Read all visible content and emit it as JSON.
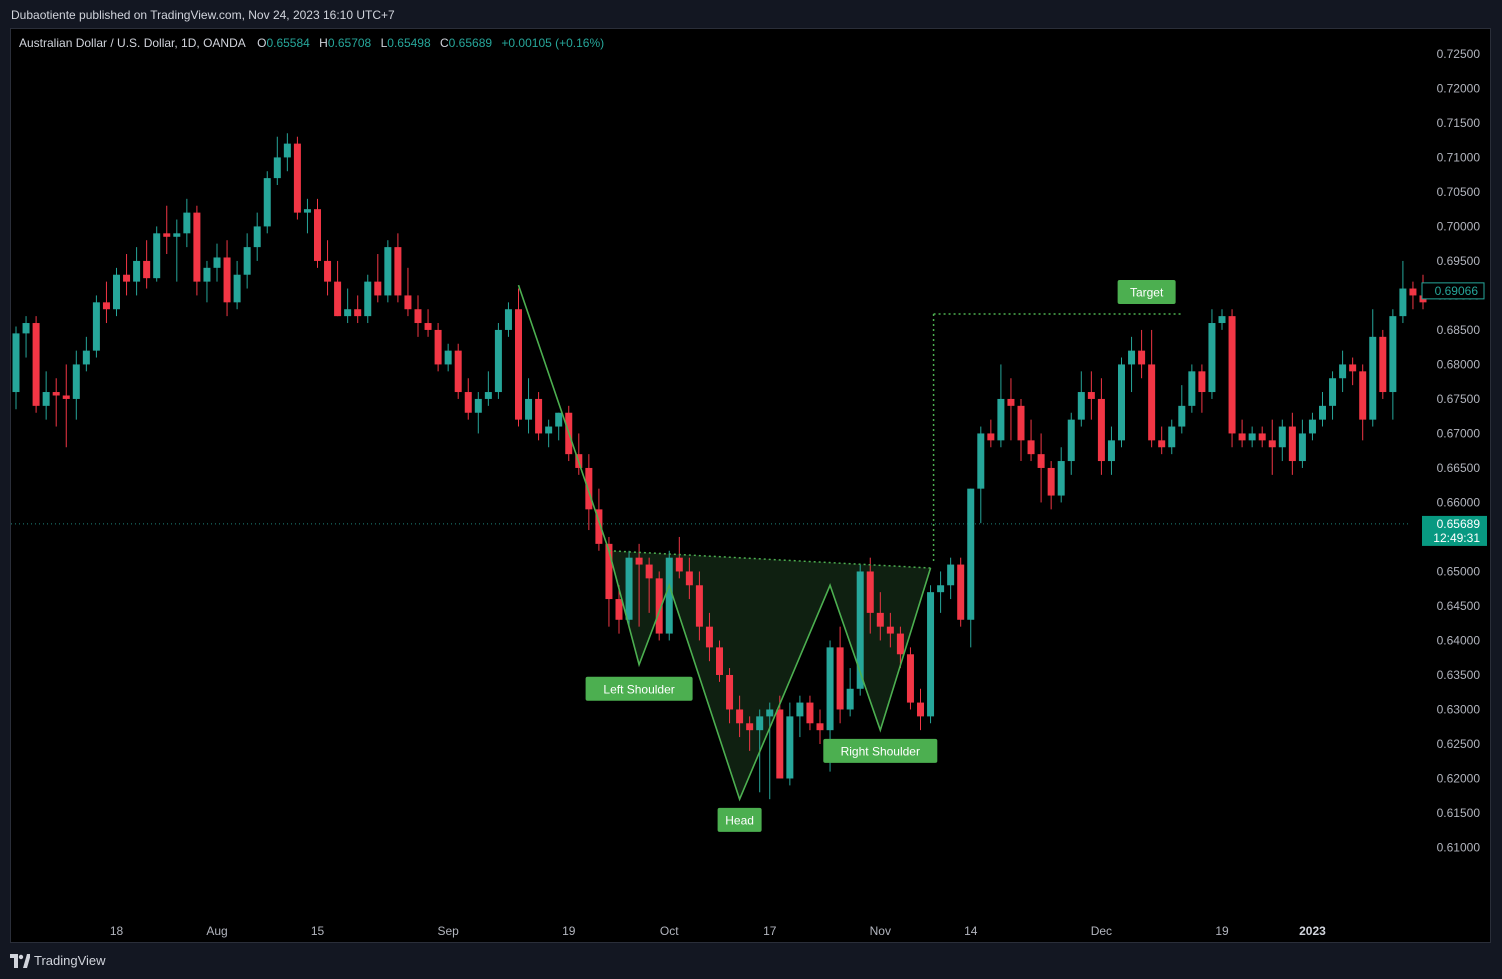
{
  "header": {
    "published": "Dubaotiente published on TradingView.com, Nov 24, 2023 16:10 UTC+7"
  },
  "legend": {
    "symbol": "Australian Dollar / U.S. Dollar, 1D, OANDA",
    "o_label": "O",
    "o_value": "0.65584",
    "h_label": "H",
    "h_value": "0.65708",
    "l_label": "L",
    "l_value": "0.65498",
    "c_label": "C",
    "c_value": "0.65689",
    "change": "+0.00105 (+0.16%)"
  },
  "footer": {
    "brand": "TradingView"
  },
  "colors": {
    "up": "#26a69a",
    "down": "#f23645",
    "pattern": "#4caf50",
    "label_bg": "#4caf50",
    "price_tag": "#089981",
    "background": "#000000"
  },
  "chart_data": {
    "type": "candlestick",
    "ylim": [
      0.605,
      0.726
    ],
    "yticks": [
      "0.72500",
      "0.72000",
      "0.71500",
      "0.71000",
      "0.70500",
      "0.70000",
      "0.69500",
      "0.69000",
      "0.68500",
      "0.68000",
      "0.67500",
      "0.67000",
      "0.66500",
      "0.66000",
      "0.65500",
      "0.65000",
      "0.64500",
      "0.64000",
      "0.63500",
      "0.63000",
      "0.62500",
      "0.62000",
      "0.61500",
      "0.61000"
    ],
    "xticks": [
      {
        "label": "18",
        "bar": 10
      },
      {
        "label": "Aug",
        "bar": 20
      },
      {
        "label": "15",
        "bar": 30
      },
      {
        "label": "Sep",
        "bar": 43
      },
      {
        "label": "19",
        "bar": 55
      },
      {
        "label": "Oct",
        "bar": 65
      },
      {
        "label": "17",
        "bar": 75
      },
      {
        "label": "Nov",
        "bar": 86
      },
      {
        "label": "14",
        "bar": 95
      },
      {
        "label": "Dec",
        "bar": 108
      },
      {
        "label": "19",
        "bar": 120
      },
      {
        "label": "2023",
        "bar": 129,
        "bold": true
      }
    ],
    "ohlc": [
      [
        0.676,
        0.6855,
        0.6735,
        0.6845
      ],
      [
        0.6845,
        0.687,
        0.681,
        0.686
      ],
      [
        0.686,
        0.687,
        0.673,
        0.674
      ],
      [
        0.674,
        0.679,
        0.672,
        0.676
      ],
      [
        0.676,
        0.678,
        0.671,
        0.6755
      ],
      [
        0.6755,
        0.68,
        0.668,
        0.675
      ],
      [
        0.675,
        0.682,
        0.672,
        0.68
      ],
      [
        0.68,
        0.684,
        0.679,
        0.682
      ],
      [
        0.682,
        0.69,
        0.681,
        0.689
      ],
      [
        0.689,
        0.692,
        0.686,
        0.688
      ],
      [
        0.688,
        0.694,
        0.687,
        0.693
      ],
      [
        0.693,
        0.696,
        0.69,
        0.692
      ],
      [
        0.692,
        0.697,
        0.69,
        0.695
      ],
      [
        0.695,
        0.698,
        0.691,
        0.6925
      ],
      [
        0.6925,
        0.7,
        0.692,
        0.699
      ],
      [
        0.699,
        0.703,
        0.696,
        0.6985
      ],
      [
        0.6985,
        0.701,
        0.692,
        0.699
      ],
      [
        0.699,
        0.704,
        0.697,
        0.702
      ],
      [
        0.702,
        0.703,
        0.69,
        0.692
      ],
      [
        0.692,
        0.695,
        0.689,
        0.694
      ],
      [
        0.694,
        0.6975,
        0.692,
        0.6955
      ],
      [
        0.6955,
        0.698,
        0.687,
        0.689
      ],
      [
        0.689,
        0.695,
        0.688,
        0.693
      ],
      [
        0.693,
        0.699,
        0.691,
        0.697
      ],
      [
        0.697,
        0.702,
        0.695,
        0.7
      ],
      [
        0.7,
        0.708,
        0.699,
        0.707
      ],
      [
        0.707,
        0.713,
        0.706,
        0.71
      ],
      [
        0.71,
        0.7135,
        0.708,
        0.712
      ],
      [
        0.712,
        0.713,
        0.701,
        0.702
      ],
      [
        0.702,
        0.704,
        0.699,
        0.7025
      ],
      [
        0.7025,
        0.704,
        0.694,
        0.695
      ],
      [
        0.695,
        0.698,
        0.69,
        0.692
      ],
      [
        0.692,
        0.695,
        0.687,
        0.687
      ],
      [
        0.687,
        0.691,
        0.686,
        0.688
      ],
      [
        0.688,
        0.69,
        0.686,
        0.687
      ],
      [
        0.687,
        0.693,
        0.686,
        0.692
      ],
      [
        0.692,
        0.696,
        0.689,
        0.69
      ],
      [
        0.69,
        0.698,
        0.689,
        0.697
      ],
      [
        0.697,
        0.699,
        0.689,
        0.69
      ],
      [
        0.69,
        0.694,
        0.687,
        0.688
      ],
      [
        0.688,
        0.69,
        0.684,
        0.686
      ],
      [
        0.686,
        0.688,
        0.684,
        0.685
      ],
      [
        0.685,
        0.686,
        0.679,
        0.68
      ],
      [
        0.68,
        0.683,
        0.679,
        0.682
      ],
      [
        0.682,
        0.683,
        0.675,
        0.676
      ],
      [
        0.676,
        0.678,
        0.672,
        0.673
      ],
      [
        0.673,
        0.676,
        0.67,
        0.675
      ],
      [
        0.675,
        0.679,
        0.674,
        0.676
      ],
      [
        0.676,
        0.686,
        0.675,
        0.685
      ],
      [
        0.685,
        0.689,
        0.684,
        0.688
      ],
      [
        0.688,
        0.691,
        0.671,
        0.672
      ],
      [
        0.672,
        0.678,
        0.67,
        0.675
      ],
      [
        0.675,
        0.676,
        0.669,
        0.67
      ],
      [
        0.67,
        0.672,
        0.668,
        0.671
      ],
      [
        0.671,
        0.673,
        0.669,
        0.673
      ],
      [
        0.673,
        0.674,
        0.666,
        0.667
      ],
      [
        0.667,
        0.67,
        0.664,
        0.665
      ],
      [
        0.665,
        0.667,
        0.656,
        0.659
      ],
      [
        0.659,
        0.662,
        0.653,
        0.654
      ],
      [
        0.654,
        0.655,
        0.642,
        0.646
      ],
      [
        0.646,
        0.648,
        0.641,
        0.643
      ],
      [
        0.643,
        0.653,
        0.642,
        0.652
      ],
      [
        0.652,
        0.654,
        0.642,
        0.651
      ],
      [
        0.651,
        0.652,
        0.644,
        0.649
      ],
      [
        0.649,
        0.65,
        0.64,
        0.641
      ],
      [
        0.641,
        0.653,
        0.64,
        0.652
      ],
      [
        0.652,
        0.655,
        0.649,
        0.65
      ],
      [
        0.65,
        0.652,
        0.646,
        0.648
      ],
      [
        0.648,
        0.65,
        0.64,
        0.642
      ],
      [
        0.642,
        0.644,
        0.637,
        0.639
      ],
      [
        0.639,
        0.64,
        0.634,
        0.635
      ],
      [
        0.635,
        0.636,
        0.628,
        0.63
      ],
      [
        0.63,
        0.632,
        0.626,
        0.628
      ],
      [
        0.628,
        0.629,
        0.624,
        0.627
      ],
      [
        0.627,
        0.63,
        0.618,
        0.629
      ],
      [
        0.629,
        0.631,
        0.617,
        0.63
      ],
      [
        0.63,
        0.632,
        0.62,
        0.62
      ],
      [
        0.62,
        0.631,
        0.619,
        0.629
      ],
      [
        0.629,
        0.632,
        0.626,
        0.631
      ],
      [
        0.631,
        0.632,
        0.627,
        0.628
      ],
      [
        0.628,
        0.63,
        0.625,
        0.627
      ],
      [
        0.627,
        0.64,
        0.621,
        0.639
      ],
      [
        0.639,
        0.642,
        0.628,
        0.63
      ],
      [
        0.63,
        0.636,
        0.629,
        0.633
      ],
      [
        0.633,
        0.651,
        0.632,
        0.65
      ],
      [
        0.65,
        0.652,
        0.641,
        0.644
      ],
      [
        0.644,
        0.647,
        0.64,
        0.642
      ],
      [
        0.642,
        0.644,
        0.639,
        0.641
      ],
      [
        0.641,
        0.642,
        0.636,
        0.638
      ],
      [
        0.638,
        0.639,
        0.63,
        0.631
      ],
      [
        0.631,
        0.633,
        0.627,
        0.629
      ],
      [
        0.629,
        0.648,
        0.628,
        0.647
      ],
      [
        0.647,
        0.65,
        0.644,
        0.648
      ],
      [
        0.648,
        0.652,
        0.646,
        0.651
      ],
      [
        0.651,
        0.652,
        0.642,
        0.643
      ],
      [
        0.643,
        0.662,
        0.639,
        0.662
      ],
      [
        0.662,
        0.671,
        0.657,
        0.67
      ],
      [
        0.67,
        0.672,
        0.668,
        0.669
      ],
      [
        0.669,
        0.68,
        0.668,
        0.675
      ],
      [
        0.675,
        0.678,
        0.669,
        0.674
      ],
      [
        0.674,
        0.675,
        0.666,
        0.669
      ],
      [
        0.669,
        0.672,
        0.666,
        0.667
      ],
      [
        0.667,
        0.67,
        0.66,
        0.665
      ],
      [
        0.665,
        0.666,
        0.659,
        0.661
      ],
      [
        0.661,
        0.668,
        0.66,
        0.666
      ],
      [
        0.666,
        0.673,
        0.664,
        0.672
      ],
      [
        0.672,
        0.679,
        0.671,
        0.676
      ],
      [
        0.676,
        0.679,
        0.672,
        0.675
      ],
      [
        0.675,
        0.678,
        0.664,
        0.666
      ],
      [
        0.666,
        0.671,
        0.664,
        0.669
      ],
      [
        0.669,
        0.681,
        0.668,
        0.68
      ],
      [
        0.68,
        0.684,
        0.676,
        0.682
      ],
      [
        0.682,
        0.685,
        0.678,
        0.68
      ],
      [
        0.68,
        0.685,
        0.668,
        0.669
      ],
      [
        0.669,
        0.671,
        0.667,
        0.668
      ],
      [
        0.668,
        0.672,
        0.667,
        0.671
      ],
      [
        0.671,
        0.677,
        0.67,
        0.674
      ],
      [
        0.674,
        0.68,
        0.673,
        0.679
      ],
      [
        0.679,
        0.68,
        0.673,
        0.676
      ],
      [
        0.676,
        0.688,
        0.675,
        0.686
      ],
      [
        0.686,
        0.688,
        0.685,
        0.687
      ],
      [
        0.687,
        0.688,
        0.668,
        0.67
      ],
      [
        0.67,
        0.672,
        0.668,
        0.669
      ],
      [
        0.669,
        0.671,
        0.668,
        0.67
      ],
      [
        0.67,
        0.671,
        0.668,
        0.669
      ],
      [
        0.669,
        0.672,
        0.664,
        0.668
      ],
      [
        0.668,
        0.672,
        0.666,
        0.671
      ],
      [
        0.671,
        0.673,
        0.664,
        0.666
      ],
      [
        0.666,
        0.672,
        0.665,
        0.67
      ],
      [
        0.67,
        0.673,
        0.669,
        0.672
      ],
      [
        0.672,
        0.676,
        0.671,
        0.674
      ],
      [
        0.674,
        0.679,
        0.672,
        0.678
      ],
      [
        0.678,
        0.682,
        0.676,
        0.68
      ],
      [
        0.68,
        0.681,
        0.677,
        0.679
      ],
      [
        0.679,
        0.68,
        0.669,
        0.672
      ],
      [
        0.672,
        0.688,
        0.671,
        0.684
      ],
      [
        0.684,
        0.685,
        0.675,
        0.676
      ],
      [
        0.676,
        0.688,
        0.672,
        0.687
      ],
      [
        0.687,
        0.695,
        0.686,
        0.691
      ],
      [
        0.691,
        0.692,
        0.688,
        0.69
      ],
      [
        0.69,
        0.693,
        0.688,
        0.689
      ]
    ],
    "pattern_points": [
      {
        "bar": 50,
        "price": 0.6915
      },
      {
        "bar": 59,
        "price": 0.653
      },
      {
        "bar": 62,
        "price": 0.6365
      },
      {
        "bar": 65,
        "price": 0.648
      },
      {
        "bar": 72,
        "price": 0.617
      },
      {
        "bar": 81,
        "price": 0.648
      },
      {
        "bar": 86,
        "price": 0.627
      },
      {
        "bar": 91,
        "price": 0.6505
      }
    ],
    "neckline": [
      {
        "bar": 59,
        "price": 0.653
      },
      {
        "bar": 91,
        "price": 0.6505
      }
    ],
    "target_line": {
      "from_bar": 91.3,
      "to_bar": 116,
      "price": 0.6873
    },
    "annotations": [
      {
        "text": "Left Shoulder",
        "bar": 62,
        "price": 0.633
      },
      {
        "text": "Head",
        "bar": 72,
        "price": 0.614
      },
      {
        "text": "Right Shoulder",
        "bar": 86,
        "price": 0.624
      },
      {
        "text": "Target",
        "bar": 112.5,
        "price": 0.6905
      }
    ],
    "last_price_line": 0.65689,
    "price_tags": [
      {
        "value": "0.69066",
        "style": "outline"
      },
      {
        "value": "0.65689",
        "sub": "12:49:31",
        "style": "filled"
      }
    ]
  }
}
